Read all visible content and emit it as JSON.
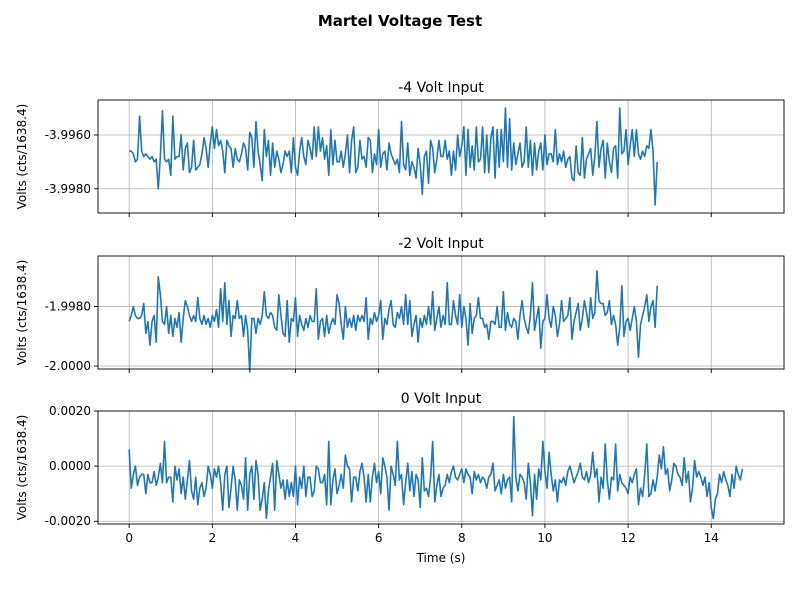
{
  "figure": {
    "suptitle": "Martel Voltage Test"
  },
  "chart_data": [
    {
      "type": "line",
      "title": "-4 Volt Input",
      "xlabel": "",
      "ylabel": "Volts (cts/1638.4)",
      "xlim": [
        -0.75,
        15.75
      ],
      "ylim": [
        -3.9989,
        -3.9947
      ],
      "xticks": [
        0,
        2,
        4,
        6,
        8,
        10,
        12,
        14
      ],
      "xtick_labels": [
        "",
        "",
        "",
        "",
        "",
        "",
        "",
        ""
      ],
      "yticks": [
        -3.998,
        -3.996
      ],
      "ytick_labels": [
        "-3.9980",
        "-3.9960"
      ],
      "grid": true,
      "color": "#1f77b4",
      "step": 0.05,
      "y": [
        -3.9966,
        -3.9966,
        -3.9967,
        -3.997,
        -3.9969,
        -3.9953,
        -3.9966,
        -3.9968,
        -3.9967,
        -3.9968,
        -3.9969,
        -3.9968,
        -3.997,
        -3.9969,
        -3.998,
        -3.9968,
        -3.9951,
        -3.9969,
        -3.997,
        -3.9969,
        -3.9975,
        -3.9953,
        -3.9969,
        -3.9968,
        -3.9968,
        -3.996,
        -3.9973,
        -3.9965,
        -3.9963,
        -3.9974,
        -3.9972,
        -3.9962,
        -3.9973,
        -3.9972,
        -3.9971,
        -3.9967,
        -3.9961,
        -3.9965,
        -3.9972,
        -3.9963,
        -3.9957,
        -3.9965,
        -3.9958,
        -3.9964,
        -3.9962,
        -3.9966,
        -3.9974,
        -3.9962,
        -3.9964,
        -3.9965,
        -3.9972,
        -3.9965,
        -3.9969,
        -3.997,
        -3.9967,
        -3.9963,
        -3.9965,
        -3.9973,
        -3.9959,
        -3.9961,
        -3.9972,
        -3.9955,
        -3.9966,
        -3.9971,
        -3.9977,
        -3.9958,
        -3.9968,
        -3.9962,
        -3.9975,
        -3.9963,
        -3.9972,
        -3.9966,
        -3.9969,
        -3.9974,
        -3.9971,
        -3.9966,
        -3.9968,
        -3.9966,
        -3.9974,
        -3.9961,
        -3.9972,
        -3.9975,
        -3.9966,
        -3.9961,
        -3.9968,
        -3.9971,
        -3.9962,
        -3.9965,
        -3.9969,
        -3.9957,
        -3.9968,
        -3.9957,
        -3.9966,
        -3.9961,
        -3.9969,
        -3.9964,
        -3.9975,
        -3.9958,
        -3.9971,
        -3.9962,
        -3.997,
        -3.997,
        -3.9966,
        -3.9972,
        -3.9967,
        -3.996,
        -3.9974,
        -3.9962,
        -3.9957,
        -3.9974,
        -3.9972,
        -3.9962,
        -3.9969,
        -3.9968,
        -3.9972,
        -3.9961,
        -3.9962,
        -3.9974,
        -3.9967,
        -3.9971,
        -3.9958,
        -3.9972,
        -3.9967,
        -3.9966,
        -3.9973,
        -3.9963,
        -3.9967,
        -3.9969,
        -3.9971,
        -3.9969,
        -3.9974,
        -3.9955,
        -3.9971,
        -3.9973,
        -3.9963,
        -3.9975,
        -3.997,
        -3.9972,
        -3.9976,
        -3.9965,
        -3.9971,
        -3.9982,
        -3.9968,
        -3.9966,
        -3.9978,
        -3.9962,
        -3.9965,
        -3.9974,
        -3.9969,
        -3.9962,
        -3.9968,
        -3.9968,
        -3.9962,
        -3.9969,
        -3.9966,
        -3.9975,
        -3.9966,
        -3.9973,
        -3.996,
        -3.9968,
        -3.9964,
        -3.9957,
        -3.9975,
        -3.9958,
        -3.9972,
        -3.9964,
        -3.9973,
        -3.9957,
        -3.997,
        -3.9969,
        -3.9957,
        -3.9974,
        -3.996,
        -3.9974,
        -3.9961,
        -3.9957,
        -3.9976,
        -3.9958,
        -3.9972,
        -3.9958,
        -3.997,
        -3.995,
        -3.9972,
        -3.9954,
        -3.9973,
        -3.9963,
        -3.9971,
        -3.9967,
        -3.9963,
        -3.9972,
        -3.997,
        -3.9957,
        -3.9972,
        -3.9962,
        -3.9975,
        -3.9963,
        -3.9973,
        -3.9966,
        -3.9963,
        -3.9973,
        -3.996,
        -3.9971,
        -3.9967,
        -3.9967,
        -3.997,
        -3.9958,
        -3.9971,
        -3.9967,
        -3.997,
        -3.9966,
        -3.9972,
        -3.9969,
        -3.9968,
        -3.9976,
        -3.9977,
        -3.9964,
        -3.9974,
        -3.9975,
        -3.9961,
        -3.9976,
        -3.9969,
        -3.9967,
        -3.9965,
        -3.9975,
        -3.9968,
        -3.9955,
        -3.9972,
        -3.9965,
        -3.9962,
        -3.9976,
        -3.9963,
        -3.997,
        -3.9974,
        -3.9965,
        -3.9964,
        -3.9976,
        -3.995,
        -3.9967,
        -3.9966,
        -3.9958,
        -3.9971,
        -3.9964,
        -3.9958,
        -3.9968,
        -3.9958,
        -3.9967,
        -3.9969,
        -3.9966,
        -3.9968,
        -3.9964,
        -3.9965,
        -3.9958,
        -3.9966,
        -3.9986,
        -3.997
      ],
      "legend": "none"
    },
    {
      "type": "line",
      "title": "-2 Volt Input",
      "xlabel": "",
      "ylabel": "Volts (cts/1638.4)",
      "xlim": [
        -0.75,
        15.75
      ],
      "ylim": [
        -2.0001,
        -1.9963
      ],
      "xticks": [
        0,
        2,
        4,
        6,
        8,
        10,
        12,
        14
      ],
      "xtick_labels": [
        "",
        "",
        "",
        "",
        "",
        "",
        "",
        ""
      ],
      "yticks": [
        -2.0,
        -1.998
      ],
      "ytick_labels": [
        "-2.0000",
        "-1.9980"
      ],
      "grid": true,
      "color": "#1f77b4",
      "step": 0.05,
      "y": [
        -1.9985,
        -1.9983,
        -1.998,
        -1.9983,
        -1.9984,
        -1.9984,
        -1.9983,
        -1.9979,
        -1.9989,
        -1.9985,
        -1.9993,
        -1.9985,
        -1.9983,
        -1.9992,
        -1.997,
        -1.9976,
        -1.9985,
        -1.9986,
        -1.998,
        -1.9989,
        -1.9983,
        -1.999,
        -1.9984,
        -1.9987,
        -1.9982,
        -1.9992,
        -1.9984,
        -1.9978,
        -1.998,
        -1.9983,
        -1.9985,
        -1.9983,
        -1.9985,
        -1.9977,
        -1.9984,
        -1.9986,
        -1.9983,
        -1.9986,
        -1.9984,
        -1.9987,
        -1.9983,
        -1.9985,
        -1.9981,
        -1.9987,
        -1.9974,
        -1.9985,
        -1.9972,
        -1.9986,
        -1.9978,
        -1.999,
        -1.9983,
        -1.9984,
        -1.9978,
        -1.9984,
        -1.9983,
        -1.999,
        -1.9983,
        -1.9988,
        -2.0002,
        -1.9984,
        -1.9984,
        -1.9989,
        -1.9984,
        -1.9986,
        -1.9983,
        -1.9975,
        -1.9983,
        -1.9984,
        -1.9982,
        -1.9983,
        -1.9987,
        -1.9988,
        -1.9976,
        -1.9983,
        -1.9989,
        -1.999,
        -1.9978,
        -1.9992,
        -1.9984,
        -1.9985,
        -1.9977,
        -1.999,
        -1.9983,
        -1.9986,
        -1.9988,
        -1.9984,
        -1.9987,
        -1.9983,
        -1.9985,
        -1.9985,
        -1.9974,
        -1.9991,
        -1.9985,
        -1.9984,
        -1.999,
        -1.9983,
        -1.9989,
        -1.9986,
        -1.9984,
        -1.9986,
        -1.9976,
        -1.9979,
        -1.9986,
        -1.9991,
        -1.998,
        -1.9987,
        -1.9984,
        -1.9987,
        -1.9983,
        -1.9988,
        -1.9983,
        -1.9985,
        -1.9983,
        -1.9985,
        -1.9977,
        -1.9991,
        -1.9984,
        -1.9986,
        -1.9982,
        -1.9985,
        -1.9983,
        -1.9978,
        -1.9991,
        -1.9984,
        -1.9986,
        -1.9981,
        -1.9978,
        -1.9986,
        -1.9987,
        -1.9982,
        -1.9984,
        -1.998,
        -1.9986,
        -1.9976,
        -1.9986,
        -1.9978,
        -1.999,
        -1.9986,
        -1.9983,
        -1.9992,
        -1.9984,
        -1.9987,
        -1.9983,
        -1.9986,
        -1.998,
        -1.9986,
        -1.9975,
        -1.9988,
        -1.9984,
        -1.998,
        -1.9987,
        -1.9983,
        -1.9986,
        -1.9972,
        -1.9986,
        -1.9986,
        -1.9978,
        -1.9983,
        -1.9986,
        -1.9976,
        -1.9987,
        -1.998,
        -1.9984,
        -1.9993,
        -1.9979,
        -1.9989,
        -1.9984,
        -1.9983,
        -1.9977,
        -1.9984,
        -1.9984,
        -1.9987,
        -1.9986,
        -1.9991,
        -1.9985,
        -1.9985,
        -1.9986,
        -1.998,
        -1.9987,
        -1.9987,
        -1.9975,
        -1.9988,
        -1.9982,
        -1.9986,
        -1.9987,
        -1.9984,
        -1.9985,
        -1.9991,
        -1.9983,
        -1.9978,
        -1.9984,
        -1.9987,
        -1.9989,
        -1.9983,
        -1.9972,
        -1.9988,
        -1.9984,
        -1.998,
        -1.9994,
        -1.9985,
        -1.9984,
        -1.9976,
        -1.9984,
        -1.9987,
        -1.998,
        -1.9983,
        -1.999,
        -1.9986,
        -1.9978,
        -1.9985,
        -1.9984,
        -1.9983,
        -1.9977,
        -1.9991,
        -1.9985,
        -1.9982,
        -1.9979,
        -1.9988,
        -1.9984,
        -1.9978,
        -1.9982,
        -1.9987,
        -1.9977,
        -1.9984,
        -1.9982,
        -1.9968,
        -1.9978,
        -1.9979,
        -1.9979,
        -1.9983,
        -1.9982,
        -1.9978,
        -1.9986,
        -1.9983,
        -1.9986,
        -1.9993,
        -1.9987,
        -1.9973,
        -1.999,
        -1.9985,
        -1.9984,
        -1.9988,
        -1.9984,
        -1.998,
        -1.9985,
        -1.9997,
        -1.9986,
        -1.9983,
        -1.998,
        -1.9976,
        -1.9985,
        -1.998,
        -1.9978,
        -1.9987,
        -1.9973
      ],
      "legend": "none"
    },
    {
      "type": "line",
      "title": "0 Volt Input",
      "xlabel": "Time (s)",
      "ylabel": "Volts (cts/1638.4)",
      "xlim": [
        -0.75,
        15.75
      ],
      "ylim": [
        -0.0021,
        0.002
      ],
      "xticks": [
        0,
        2,
        4,
        6,
        8,
        10,
        12,
        14
      ],
      "xtick_labels": [
        "0",
        "2",
        "4",
        "6",
        "8",
        "10",
        "12",
        "14"
      ],
      "yticks": [
        -0.002,
        0.0,
        0.002
      ],
      "ytick_labels": [
        "-0.0020",
        "0.0000",
        "0.0020"
      ],
      "grid": true,
      "color": "#1f77b4",
      "step": 0.05,
      "y": [
        0.0006,
        -0.0008,
        -0.0003,
        0.0,
        -0.0007,
        -0.0004,
        -0.0003,
        -0.0003,
        -0.001,
        -0.0003,
        -0.0006,
        -0.0006,
        -0.0002,
        -0.0007,
        -0.0004,
        0.0001,
        -0.0006,
        0.0009,
        -0.0006,
        -0.0004,
        -0.0004,
        -0.0013,
        0.0,
        -0.0005,
        -0.0001,
        -0.001,
        -0.0004,
        -0.0012,
        -0.0005,
        0.0002,
        -0.0009,
        -0.0012,
        -0.0004,
        -0.0014,
        -0.0008,
        -0.0006,
        -0.0011,
        -0.0008,
        0.0,
        -0.0003,
        -0.0008,
        -0.0001,
        -0.0004,
        0.0,
        -0.0006,
        -0.0016,
        -0.0003,
        0.0,
        -0.0015,
        -0.0008,
        0.0,
        -0.0005,
        -0.0016,
        -0.0005,
        -0.0007,
        -0.0012,
        0.0003,
        -0.0016,
        -0.0003,
        0.0,
        -0.0012,
        0.0002,
        -0.0003,
        -0.0016,
        -0.0012,
        -0.0006,
        -0.0019,
        -0.0009,
        -0.0004,
        0.0001,
        -0.0016,
        0.0002,
        -0.0003,
        -0.0008,
        -0.0005,
        -0.0012,
        -0.0005,
        -0.0011,
        -0.0006,
        -0.0011,
        0.0,
        -0.0014,
        -0.0004,
        -0.0008,
        0.0,
        -0.0011,
        -0.0004,
        -0.0004,
        -0.0011,
        -0.0009,
        0.0,
        -0.0001,
        -0.0006,
        -0.0006,
        -0.0003,
        -0.0014,
        0.0009,
        -0.0014,
        -0.0005,
        -0.0001,
        -0.001,
        -0.0007,
        -0.0003,
        -0.0008,
        0.0004,
        0.0,
        -0.0001,
        -0.0013,
        -0.0004,
        -0.0004,
        -0.0009,
        -0.0002,
        0.0001,
        -0.0004,
        -0.0013,
        -0.0003,
        -0.0013,
        -0.0004,
        0.0001,
        -0.0006,
        -0.0002,
        -0.001,
        0.0003,
        0.0,
        -0.0004,
        -0.0016,
        0.0,
        -0.0003,
        -0.0007,
        0.0009,
        -0.0005,
        -0.0003,
        -0.0014,
        -0.0006,
        0.0001,
        -0.0009,
        -0.0002,
        -0.0011,
        -0.0003,
        -0.0005,
        -0.0015,
        0.0003,
        -0.0009,
        -0.0008,
        -0.0011,
        -0.0004,
        0.0009,
        -0.0013,
        -0.0007,
        -0.0003,
        -0.0011,
        -0.0008,
        -0.0007,
        -0.0003,
        -0.0006,
        -0.0002,
        0.0,
        -0.0004,
        -0.0005,
        -0.0003,
        -0.0001,
        -0.0006,
        -0.0001,
        -0.0003,
        -0.0004,
        -0.001,
        -0.0002,
        -0.0005,
        -0.0003,
        -0.0006,
        -0.0004,
        -0.0005,
        -0.0008,
        -0.0004,
        -0.0003,
        0.0001,
        -0.0009,
        -0.0007,
        -0.0005,
        -0.001,
        -0.0003,
        -0.0008,
        -0.0005,
        -0.0004,
        -0.0013,
        0.0018,
        -0.0004,
        -0.0009,
        -0.0003,
        -0.0004,
        -0.0006,
        -0.0012,
        0.0001,
        -0.0006,
        -0.0018,
        -0.0003,
        -0.0012,
        -0.0001,
        -0.0005,
        0.0009,
        -0.0002,
        -0.0008,
        0.0005,
        -0.0003,
        -0.0009,
        -0.0005,
        -0.0013,
        -0.0005,
        -0.0006,
        -0.0004,
        -0.0007,
        -0.0002,
        0.0,
        -0.0003,
        -0.0006,
        -0.0004,
        -0.0002,
        0.0001,
        -0.0004,
        -0.0005,
        -0.0002,
        -0.0006,
        -0.0003,
        0.0005,
        -0.0004,
        -0.0001,
        -0.0013,
        -0.0004,
        -0.0008,
        0.0008,
        -0.0005,
        -0.0012,
        -0.0004,
        -0.0005,
        0.0008,
        -0.0009,
        -0.0003,
        -0.0006,
        -0.0007,
        -0.0008,
        -0.001,
        -0.0004,
        -0.0006,
        -0.0003,
        -0.0001,
        -0.0014,
        -0.0008,
        -0.0011,
        -0.0003,
        0.0008,
        -0.0011,
        -0.001,
        -0.0005,
        -0.0009,
        -0.0004,
        0.0004,
        -0.0001,
        0.0007,
        -0.0003,
        -0.0001,
        -0.0009,
        -0.0005,
        0.0001,
        0.0,
        -0.0003,
        -0.0004,
        -0.0007,
        0.0003,
        -0.0006,
        -0.0002,
        -0.0013,
        -0.0008,
        0.0002,
        -0.0004,
        -0.0002,
        -0.0004,
        -0.0007,
        -0.0004,
        -0.0011,
        -0.0006,
        -0.0015,
        -0.0019,
        -0.0012,
        -0.001,
        -0.0003,
        -0.0006,
        -0.0002,
        -0.0005,
        -0.0007,
        -0.0011,
        -0.0003,
        -0.0008,
        0.0,
        -0.0003,
        -0.0005,
        -0.0001
      ],
      "legend": "none"
    }
  ]
}
